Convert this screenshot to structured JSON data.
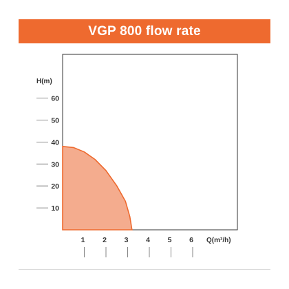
{
  "header": {
    "title": "VGP 800 flow rate"
  },
  "colors": {
    "accent": "#ee6a2f",
    "curve_fill": "#f4ac8e",
    "curve_line": "#ee6a2f"
  },
  "chart_data": {
    "type": "area",
    "title": "VGP 800 flow rate",
    "xlabel": "Q(m³/h)",
    "ylabel": "H(m)",
    "xlim": [
      0,
      8
    ],
    "ylim": [
      0,
      75
    ],
    "xticks": [
      1,
      2,
      3,
      4,
      5,
      6
    ],
    "yticks": [
      10,
      20,
      30,
      40,
      50,
      60
    ],
    "grid": false,
    "series": [
      {
        "x": [
          0,
          0.5,
          1.0,
          1.5,
          2.0,
          2.5,
          2.9,
          3.1,
          3.2
        ],
        "y": [
          38,
          37.5,
          35.5,
          32,
          27,
          20,
          13,
          6,
          0
        ]
      }
    ]
  }
}
